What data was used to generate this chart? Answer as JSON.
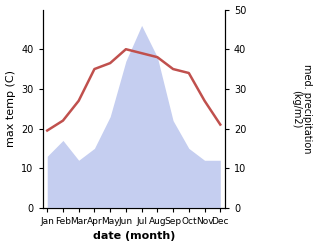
{
  "months": [
    "Jan",
    "Feb",
    "Mar",
    "Apr",
    "May",
    "Jun",
    "Jul",
    "Aug",
    "Sep",
    "Oct",
    "Nov",
    "Dec"
  ],
  "month_x": [
    0,
    1,
    2,
    3,
    4,
    5,
    6,
    7,
    8,
    9,
    10,
    11
  ],
  "temperature": [
    19.5,
    22,
    27,
    35,
    36.5,
    40,
    39,
    38,
    35,
    34,
    27,
    21
  ],
  "precipitation": [
    13,
    17,
    12,
    15,
    23,
    37,
    46,
    38,
    22,
    15,
    12,
    12
  ],
  "temp_color": "#c0504d",
  "precip_fill_color": "#c5cef0",
  "precip_edge_color": "#b0bce8",
  "left_ylim": [
    0,
    50
  ],
  "left_yticks": [
    0,
    10,
    20,
    30,
    40
  ],
  "right_ylim": [
    0,
    50
  ],
  "right_yticks": [
    0,
    10,
    20,
    30,
    40,
    50
  ],
  "ylabel_left": "max temp (C)",
  "ylabel_right": "med. precipitation\n(kg/m2)",
  "xlabel": "date (month)",
  "figsize": [
    3.18,
    2.47
  ],
  "dpi": 100
}
